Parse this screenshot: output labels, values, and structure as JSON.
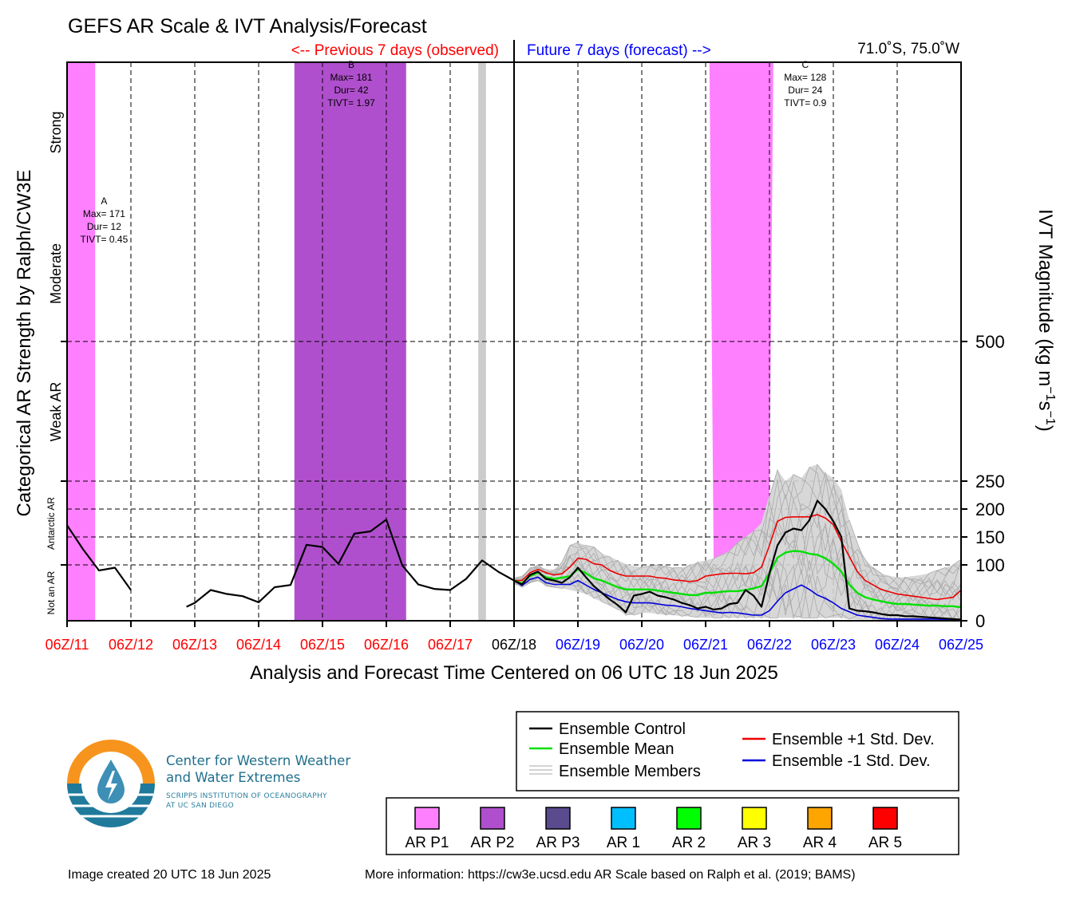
{
  "title": "GEFS AR Scale & IVT Analysis/Forecast",
  "previous_label": "<-- Previous 7 days (observed)",
  "future_label": "Future 7 days (forecast) -->",
  "location": "71.0˚S, 75.0˚W",
  "colors": {
    "previous_label": "#ff0000",
    "future_label": "#0000ff",
    "ar_p1": "#ff80ff",
    "ar_p2": "#b04fcd",
    "ar_p3": "#5a4a8e",
    "ar1": "#00bfff",
    "ar2": "#00ff00",
    "ar3": "#ffff00",
    "ar4": "#ffa500",
    "ar5": "#ff0000",
    "control": "#000000",
    "mean": "#00e000",
    "plus_std": "#ee0000",
    "minus_std": "#0000dd",
    "members": "#aaaaaa",
    "spread": "#d3d3d3",
    "missing_bar": "#cccccc"
  },
  "left_axis": {
    "title": "Categorical AR Strength by Ralph/CW3E",
    "categories": [
      "Not an AR",
      "Antarctic AR",
      "Weak AR",
      "Moderate",
      "Strong"
    ]
  },
  "chart_data": {
    "type": "line",
    "x_unit": "days from 06Z 11 Jun 2025",
    "xlim": [
      0,
      14
    ],
    "x_ticks": [
      {
        "x": 0,
        "label": "06Z/11",
        "period": "observed"
      },
      {
        "x": 1,
        "label": "06Z/12",
        "period": "observed"
      },
      {
        "x": 2,
        "label": "06Z/13",
        "period": "observed"
      },
      {
        "x": 3,
        "label": "06Z/14",
        "period": "observed"
      },
      {
        "x": 4,
        "label": "06Z/15",
        "period": "observed"
      },
      {
        "x": 5,
        "label": "06Z/16",
        "period": "observed"
      },
      {
        "x": 6,
        "label": "06Z/17",
        "period": "observed"
      },
      {
        "x": 7,
        "label": "06Z/18",
        "period": "now"
      },
      {
        "x": 8,
        "label": "06Z/19",
        "period": "forecast"
      },
      {
        "x": 9,
        "label": "06Z/20",
        "period": "forecast"
      },
      {
        "x": 10,
        "label": "06Z/21",
        "period": "forecast"
      },
      {
        "x": 11,
        "label": "06Z/22",
        "period": "forecast"
      },
      {
        "x": 12,
        "label": "06Z/23",
        "period": "forecast"
      },
      {
        "x": 13,
        "label": "06Z/24",
        "period": "forecast"
      },
      {
        "x": 14,
        "label": "06Z/25",
        "period": "forecast"
      }
    ],
    "xlabel": "Analysis and Forecast Time Centered on 06 UTC 18 Jun 2025",
    "ylabel": "IVT Magnitude (kg m⁻¹s⁻¹)",
    "y_ticks": [
      0,
      100,
      150,
      200,
      250,
      500
    ],
    "ylim": [
      0,
      1000
    ],
    "grid": "dashed",
    "ar_events": [
      {
        "start": 0,
        "end": 0.44,
        "category": "AR P1",
        "label": "A",
        "max": "Max= 171",
        "dur": "Dur= 12",
        "tivt": "TIVT= 0.45",
        "label_x": 0.58,
        "label_y": 746
      },
      {
        "start": 3.56,
        "end": 5.31,
        "category": "AR P2",
        "label": "B",
        "max": "Max= 181",
        "dur": "Dur= 42",
        "tivt": "TIVT= 1.97",
        "label_x": 4.45,
        "label_y": 990
      },
      {
        "start": 10.06,
        "end": 11.06,
        "category": "AR P1",
        "label": "C",
        "max": "Max= 128",
        "dur": "Dur= 24",
        "tivt": "TIVT= 0.9",
        "label_x": 11.56,
        "label_y": 990
      }
    ],
    "missing_data": [
      {
        "start": 6.44,
        "end": 6.56
      }
    ],
    "observed": {
      "name": "Ensemble Control",
      "segments": [
        [
          [
            0,
            171
          ],
          [
            0.25,
            128
          ],
          [
            0.5,
            90
          ],
          [
            0.75,
            95
          ],
          [
            1.0,
            55
          ]
        ],
        [
          [
            1.87,
            25
          ],
          [
            2.0,
            32
          ],
          [
            2.25,
            55
          ],
          [
            2.5,
            48
          ],
          [
            2.75,
            44
          ],
          [
            3.0,
            33
          ],
          [
            3.25,
            60
          ],
          [
            3.5,
            64
          ],
          [
            3.75,
            136
          ],
          [
            4.0,
            132
          ],
          [
            4.25,
            102
          ],
          [
            4.5,
            156
          ],
          [
            4.75,
            160
          ],
          [
            5.0,
            181
          ],
          [
            5.25,
            99
          ],
          [
            5.5,
            65
          ],
          [
            5.75,
            57
          ],
          [
            6.0,
            55
          ],
          [
            6.25,
            75
          ],
          [
            6.5,
            108
          ],
          [
            6.75,
            88
          ],
          [
            7.0,
            72
          ]
        ]
      ]
    },
    "forecast": {
      "x": [
        7.0,
        7.125,
        7.25,
        7.375,
        7.5,
        7.625,
        7.75,
        7.875,
        8.0,
        8.125,
        8.25,
        8.375,
        8.5,
        8.625,
        8.75,
        8.875,
        9.0,
        9.125,
        9.25,
        9.375,
        9.5,
        9.625,
        9.75,
        9.875,
        10.0,
        10.125,
        10.25,
        10.375,
        10.5,
        10.625,
        10.75,
        10.875,
        11.0,
        11.125,
        11.25,
        11.375,
        11.5,
        11.625,
        11.75,
        11.875,
        12.0,
        12.125,
        12.25,
        12.375,
        12.5,
        12.625,
        12.75,
        12.875,
        13.0,
        13.125,
        13.25,
        13.375,
        13.5,
        13.625,
        13.75,
        13.875,
        14.0
      ],
      "control": [
        72,
        65,
        82,
        88,
        75,
        72,
        68,
        78,
        95,
        78,
        62,
        50,
        38,
        28,
        15,
        45,
        48,
        52,
        45,
        42,
        38,
        32,
        28,
        22,
        25,
        20,
        22,
        30,
        32,
        55,
        45,
        25,
        85,
        135,
        158,
        165,
        162,
        180,
        215,
        200,
        178,
        150,
        22,
        18,
        17,
        15,
        12,
        10,
        10,
        8,
        8,
        7,
        6,
        5,
        4,
        3,
        2
      ],
      "mean": [
        72,
        67,
        80,
        86,
        78,
        75,
        77,
        80,
        92,
        85,
        76,
        72,
        66,
        60,
        56,
        56,
        56,
        56,
        54,
        52,
        50,
        48,
        46,
        46,
        50,
        50,
        52,
        53,
        53,
        55,
        58,
        62,
        85,
        113,
        122,
        125,
        124,
        120,
        118,
        112,
        102,
        88,
        65,
        50,
        42,
        38,
        35,
        32,
        30,
        30,
        29,
        28,
        27,
        27,
        26,
        26,
        24
      ],
      "plus_std": [
        72,
        72,
        86,
        92,
        86,
        82,
        84,
        96,
        112,
        110,
        102,
        100,
        90,
        84,
        80,
        80,
        80,
        80,
        77,
        76,
        73,
        72,
        70,
        72,
        80,
        82,
        84,
        85,
        85,
        84,
        86,
        96,
        135,
        178,
        185,
        186,
        186,
        186,
        190,
        184,
        172,
        142,
        115,
        88,
        72,
        64,
        56,
        52,
        48,
        46,
        44,
        42,
        40,
        38,
        40,
        42,
        55
      ],
      "minus_std": [
        72,
        63,
        74,
        78,
        68,
        65,
        65,
        65,
        72,
        64,
        56,
        50,
        44,
        38,
        34,
        32,
        32,
        32,
        30,
        28,
        27,
        25,
        22,
        20,
        18,
        16,
        14,
        15,
        14,
        12,
        10,
        10,
        18,
        35,
        50,
        57,
        64,
        56,
        46,
        40,
        32,
        22,
        16,
        10,
        8,
        6,
        4,
        3,
        3,
        3,
        3,
        3,
        3,
        3,
        2,
        1,
        1
      ],
      "spread_upper": [
        76,
        80,
        95,
        100,
        92,
        92,
        105,
        135,
        140,
        135,
        132,
        120,
        115,
        108,
        102,
        98,
        96,
        98,
        100,
        98,
        95,
        95,
        100,
        105,
        108,
        112,
        118,
        125,
        140,
        150,
        160,
        175,
        225,
        270,
        250,
        262,
        255,
        275,
        280,
        265,
        255,
        235,
        180,
        140,
        110,
        95,
        85,
        80,
        78,
        78,
        80,
        82,
        85,
        90,
        95,
        100,
        110
      ],
      "spread_lower": [
        66,
        60,
        68,
        72,
        62,
        60,
        58,
        55,
        52,
        48,
        40,
        34,
        28,
        20,
        10,
        10,
        14,
        14,
        12,
        10,
        10,
        8,
        8,
        6,
        5,
        5,
        5,
        5,
        5,
        5,
        5,
        5,
        5,
        5,
        5,
        5,
        5,
        5,
        5,
        5,
        5,
        5,
        3,
        2,
        2,
        2,
        2,
        1,
        1,
        1,
        1,
        1,
        1,
        1,
        0,
        0,
        0
      ]
    }
  },
  "legend": {
    "control": "Ensemble Control",
    "mean": "Ensemble Mean",
    "members": "Ensemble Members",
    "plus_std": "Ensemble +1 Std. Dev.",
    "minus_std": "Ensemble -1 Std. Dev."
  },
  "ar_scale": [
    {
      "label": "AR P1",
      "color": "#ff80ff"
    },
    {
      "label": "AR P2",
      "color": "#b04fcd"
    },
    {
      "label": "AR P3",
      "color": "#5a4a8e"
    },
    {
      "label": "AR 1",
      "color": "#00bfff"
    },
    {
      "label": "AR 2",
      "color": "#00ff00"
    },
    {
      "label": "AR 3",
      "color": "#ffff00"
    },
    {
      "label": "AR 4",
      "color": "#ffa500"
    },
    {
      "label": "AR 5",
      "color": "#ff0000"
    }
  ],
  "logo": {
    "title_line1": "Center for Western Weather",
    "title_line2": "and Water Extremes",
    "sub_line1": "SCRIPPS INSTITUTION OF OCEANOGRAPHY",
    "sub_line2": "AT UC SAN DIEGO"
  },
  "footer": {
    "created": "Image created 20 UTC 18 Jun 2025",
    "info": "More information: https://cw3e.ucsd.edu AR Scale based on Ralph et al. (2019; BAMS)"
  }
}
